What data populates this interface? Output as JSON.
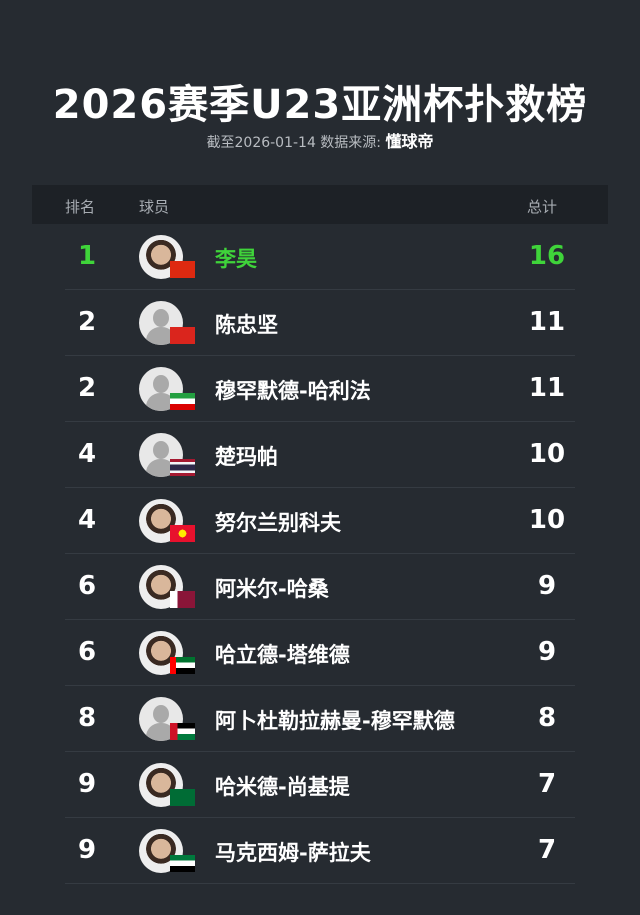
{
  "title": "2026赛季U23亚洲杯扑救榜",
  "subtitle": {
    "prefix": "截至2026-01-14 数据来源:",
    "source": "懂球帝"
  },
  "columns": {
    "rank": "排名",
    "player": "球员",
    "total": "总计"
  },
  "accent": "#3fd43a",
  "rows": [
    {
      "rank": "1",
      "name": "李昊",
      "total": "16",
      "flag": "china",
      "photo": true
    },
    {
      "rank": "2",
      "name": "陈忠坚",
      "total": "11",
      "flag": "vietnam",
      "photo": false
    },
    {
      "rank": "2",
      "name": "穆罕默德-哈利法",
      "total": "11",
      "flag": "iran",
      "photo": false
    },
    {
      "rank": "4",
      "name": "楚玛帕",
      "total": "10",
      "flag": "thailand",
      "photo": false
    },
    {
      "rank": "4",
      "name": "努尔兰别科夫",
      "total": "10",
      "flag": "kyrgyzstan",
      "photo": true
    },
    {
      "rank": "6",
      "name": "阿米尔-哈桑",
      "total": "9",
      "flag": "qatar",
      "photo": true
    },
    {
      "rank": "6",
      "name": "哈立德-塔维德",
      "total": "9",
      "flag": "uae",
      "photo": true
    },
    {
      "rank": "8",
      "name": "阿卜杜勒拉赫曼-穆罕默德",
      "total": "8",
      "flag": "jordan",
      "photo": false
    },
    {
      "rank": "9",
      "name": "哈米德-尚基提",
      "total": "7",
      "flag": "saudi-arabia",
      "photo": true
    },
    {
      "rank": "9",
      "name": "马克西姆-萨拉夫",
      "total": "7",
      "flag": "syria",
      "photo": true
    }
  ]
}
